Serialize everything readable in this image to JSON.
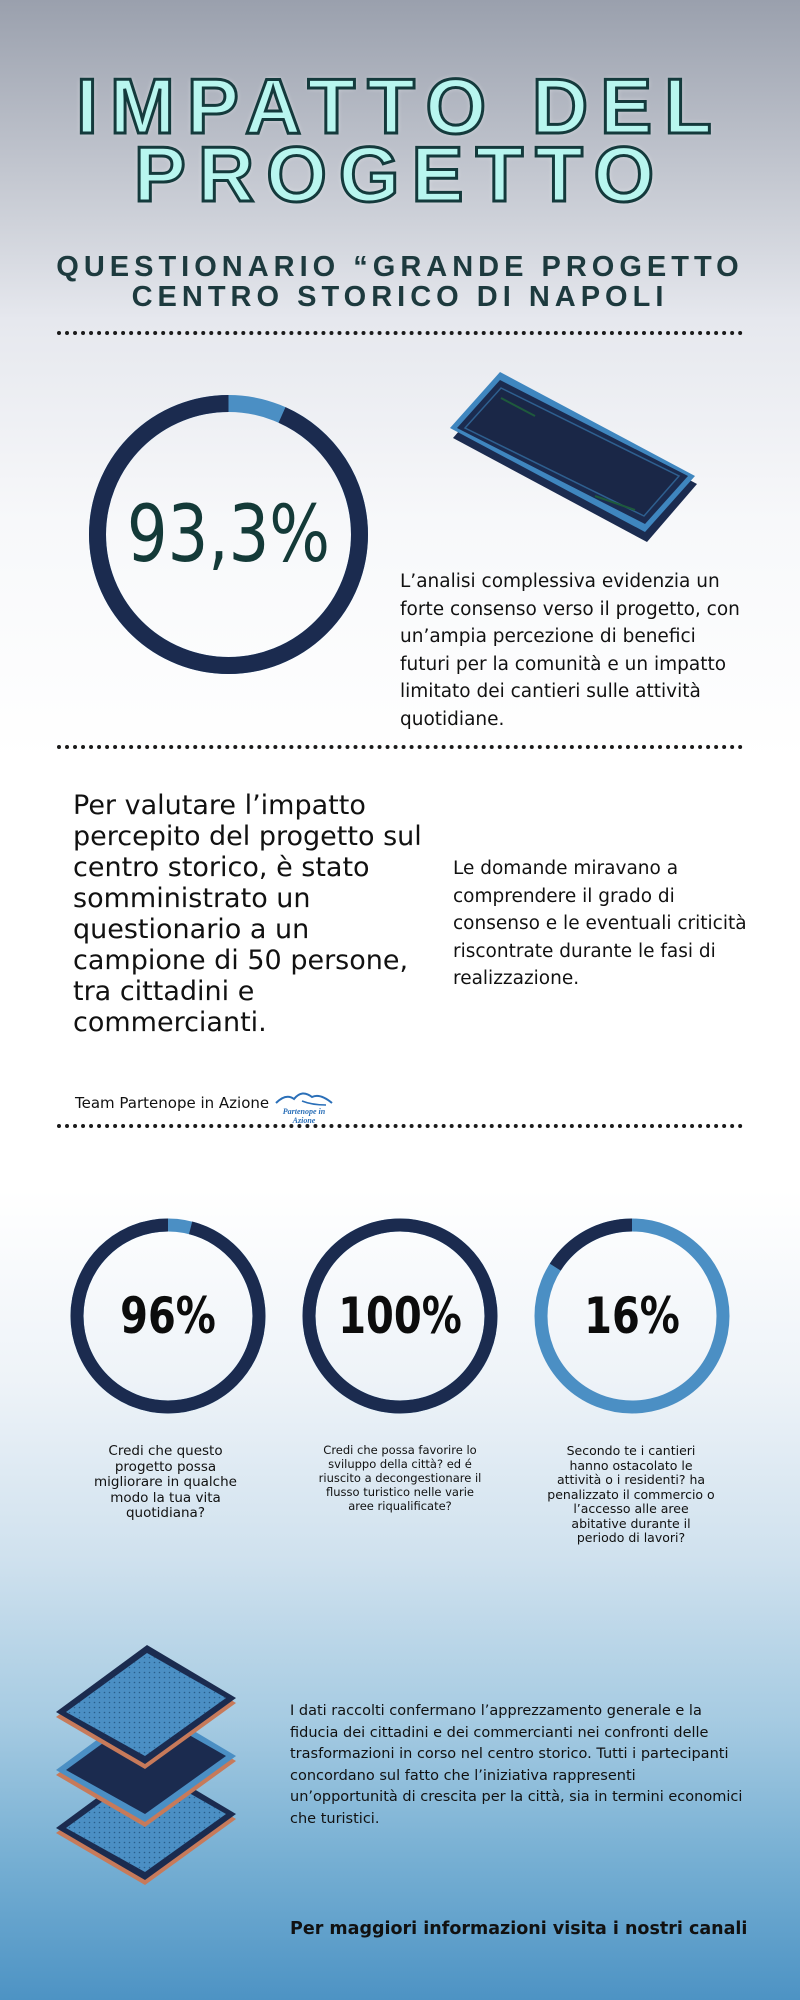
{
  "header": {
    "title_line1": "IMPATTO DEL",
    "title_line2": "PROGETTO",
    "subtitle_line1": "QUESTIONARIO “GRANDE PROGETTO",
    "subtitle_line2": "CENTRO STORICO DI NAPOLI"
  },
  "overview": {
    "percentage": "93,3%",
    "percentage_value": 93.3,
    "description": "L’analisi complessiva evidenzia un forte consenso verso il progetto, con un’ampia percezione di benefici futuri per la comunità e un impatto limitato dei cantieri sulle attività quotidiane."
  },
  "survey": {
    "intro": "Per valutare l’impatto percepito del progetto sul centro storico, è stato somministrato un questionario a un campione di 50 persone, tra cittadini e commercianti.",
    "aims": "Le domande miravano a comprendere il grado di consenso e le eventuali criticità riscontrate durante le fasi di realizzazione.",
    "team_label": "Team Partenope in Azione",
    "logo_text_line1": "Partenope in",
    "logo_text_line2": "Azione"
  },
  "stats": [
    {
      "percentage": "96%",
      "value": 96,
      "question": "Credi che questo progetto possa migliorare in qualche modo la tua vita quotidiana?"
    },
    {
      "percentage": "100%",
      "value": 100,
      "question": "Credi che possa favorire lo sviluppo della città? ed é riuscito a decongestionare il flusso turistico nelle varie aree riqualificate?"
    },
    {
      "percentage": "16%",
      "value": 16,
      "question": "Secondo te i cantieri hanno ostacolato le attività o i residenti? ha penalizzato il commercio o l’accesso alle aree abitative durante il periodo di lavori?"
    }
  ],
  "footer": {
    "summary": "I dati raccolti confermano l’apprezzamento generale e la fiducia dei cittadini e dei commercianti nei confronti delle trasformazioni in corso nel centro storico. Tutti i partecipanti concordano sul fatto che l’iniziativa rappresenti un’opportunità di crescita per la città, sia in termini economici che turistici.",
    "cta": "Per maggiori informazioni visita i nostri canali"
  },
  "colors": {
    "ring_dark": "#1b2b4f",
    "ring_light": "#4b8fc4",
    "title_fill": "#b8f6ef",
    "title_outline": "#143a3c",
    "subtitle": "#1d3a3e"
  },
  "icons": {
    "phone": "smartphone-icon",
    "tablets": "tablet-stack-icon",
    "logo": "partenope-logo"
  }
}
